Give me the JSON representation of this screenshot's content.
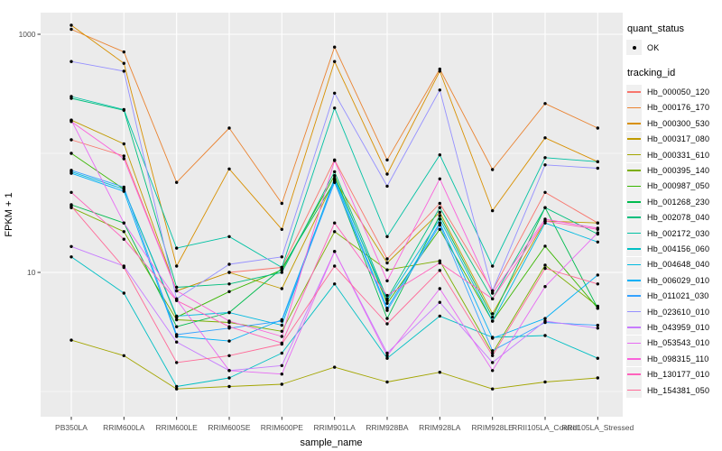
{
  "legend": {
    "quant_status_title": "quant_status",
    "ok_label": "OK",
    "tracking_title": "tracking_id"
  },
  "colors": {
    "panel_bg": "#EBEBEB",
    "gridline": "#FFFFFF",
    "tick_label": "#4D4D4D",
    "point": "#000000",
    "legend_key_bg": "#F0F0F0"
  },
  "chart_data": {
    "type": "line",
    "title": "",
    "xlabel": "sample_name",
    "ylabel": "FPKM + 1",
    "y_scale": "log10",
    "grid": true,
    "legend_position": "right",
    "y_ticks": [
      {
        "value": 1000,
        "label": "1000"
      },
      {
        "value": 10,
        "label": "10"
      }
    ],
    "y_minor": [
      100,
      1
    ],
    "ylim_log10": [
      -0.21,
      3.18
    ],
    "categories": [
      "PB350LA",
      "RRIM600LA",
      "RRIM600LE",
      "RRIM600SE",
      "RRIM600PE",
      "RRIM901LA",
      "RRIM928BA",
      "RRIM928LA",
      "RRIM928LE",
      "RRII105LA_Control",
      "RRII105LA_Stressed"
    ],
    "point_shape": "filled-circle",
    "series": [
      {
        "name": "Hb_000050_120",
        "color": "#F8766D",
        "values": [
          130,
          95,
          7,
          10,
          11,
          88,
          13,
          38,
          7,
          47,
          26
        ]
      },
      {
        "name": "Hb_000176_170",
        "color": "#EA8331",
        "values": [
          1100,
          710,
          57,
          163,
          38,
          780,
          88,
          510,
          73,
          262,
          163
        ]
      },
      {
        "name": "Hb_000300_530",
        "color": "#D89000",
        "values": [
          1190,
          570,
          11.3,
          74,
          23,
          590,
          67,
          490,
          33,
          135,
          85
        ]
      },
      {
        "name": "Hb_000317_080",
        "color": "#C09B00",
        "values": [
          190,
          120,
          7,
          10,
          7.3,
          60,
          12,
          32,
          4.5,
          27,
          26
        ]
      },
      {
        "name": "Hb_000331_610",
        "color": "#A3A500",
        "values": [
          2.7,
          2.0,
          1.05,
          1.1,
          1.15,
          1.6,
          1.2,
          1.45,
          1.05,
          1.2,
          1.3
        ]
      },
      {
        "name": "Hb_000395_140",
        "color": "#7CAE00",
        "values": [
          35,
          22,
          4.0,
          3.8,
          3.2,
          22,
          10.5,
          12.5,
          2.1,
          11.5,
          5.2
        ]
      },
      {
        "name": "Hb_000987_050",
        "color": "#39B600",
        "values": [
          100,
          50,
          4.2,
          6.9,
          10.5,
          65,
          5.5,
          23,
          3.9,
          16.6,
          5.0
        ]
      },
      {
        "name": "Hb_001268_230",
        "color": "#00BB4E",
        "values": [
          37,
          26,
          3.5,
          4.6,
          10.8,
          58,
          4.1,
          30,
          4.2,
          35,
          5.0
        ]
      },
      {
        "name": "Hb_002078_040",
        "color": "#00BF7D",
        "values": [
          290,
          230,
          7.5,
          8,
          10,
          70,
          6,
          35,
          6,
          35,
          21
        ]
      },
      {
        "name": "Hb_002172_030",
        "color": "#00C1A3",
        "values": [
          300,
          233,
          16,
          20,
          11,
          240,
          20,
          97,
          11.3,
          92,
          85
        ]
      },
      {
        "name": "Hb_004156_060",
        "color": "#00BFC4",
        "values": [
          13.5,
          6.7,
          1.1,
          1.3,
          2.1,
          8,
          1.9,
          4.3,
          2.85,
          2.95,
          1.9
        ]
      },
      {
        "name": "Hb_004648_040",
        "color": "#00BAE0",
        "values": [
          70,
          50,
          4.3,
          4.6,
          3.6,
          62,
          5.8,
          28,
          3.9,
          26,
          18
        ]
      },
      {
        "name": "Hb_006029_010",
        "color": "#00B0F6",
        "values": [
          68,
          48,
          2.9,
          2.65,
          4.0,
          60,
          5.0,
          26,
          2.8,
          4.1,
          9.5
        ]
      },
      {
        "name": "Hb_011021_030",
        "color": "#35A2FF",
        "values": [
          72,
          52,
          3.0,
          3.4,
          3.9,
          57,
          4.8,
          25,
          2.2,
          3.8,
          3.6
        ]
      },
      {
        "name": "Hb_023610_010",
        "color": "#9590FF",
        "values": [
          590,
          490,
          6.0,
          11.7,
          13.5,
          320,
          53,
          340,
          7.0,
          80,
          75
        ]
      },
      {
        "name": "Hb_043959_010",
        "color": "#C77CFF",
        "values": [
          16.5,
          11.3,
          2.6,
          1.5,
          1.65,
          15,
          2.1,
          5.6,
          1.75,
          3.9,
          3.4
        ]
      },
      {
        "name": "Hb_053543_010",
        "color": "#E76BF3",
        "values": [
          190,
          26,
          5.9,
          1.5,
          1.4,
          15,
          2.0,
          7.3,
          1.5,
          7.6,
          21.5
        ]
      },
      {
        "name": "Hb_098315_110",
        "color": "#FA62DB",
        "values": [
          185,
          90,
          7.0,
          3.9,
          2.9,
          87,
          8.5,
          61,
          6.7,
          28,
          23.5
        ]
      },
      {
        "name": "Hb_130177_010",
        "color": "#FF62BC",
        "values": [
          47,
          19,
          5.8,
          3.5,
          2.55,
          26,
          6.4,
          12,
          6.0,
          27,
          23
        ]
      },
      {
        "name": "Hb_154381_050",
        "color": "#FF6A98",
        "values": [
          36,
          11,
          1.75,
          2.0,
          2.5,
          11.3,
          3.7,
          10.4,
          2.0,
          10.8,
          8.0
        ]
      }
    ]
  }
}
